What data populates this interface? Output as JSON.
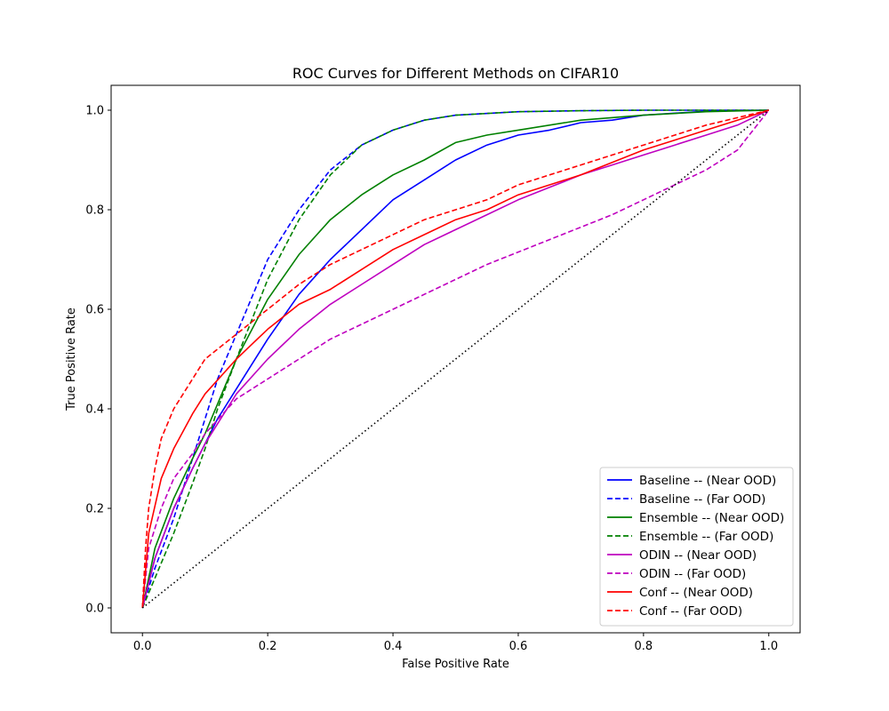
{
  "chart_data": {
    "type": "line",
    "title": "ROC Curves for Different Methods on CIFAR10",
    "xlabel": "False Positive Rate",
    "ylabel": "True Positive Rate",
    "xlim": [
      -0.05,
      1.05
    ],
    "ylim": [
      -0.05,
      1.05
    ],
    "xticks": [
      "0.0",
      "0.2",
      "0.4",
      "0.6",
      "0.8",
      "1.0"
    ],
    "yticks": [
      "0.0",
      "0.2",
      "0.4",
      "0.6",
      "0.8",
      "1.0"
    ],
    "grid": false,
    "legend_position": "lower-right",
    "series": [
      {
        "name": "Baseline -- (Near OOD)",
        "color": "#0000ff",
        "style": "solid",
        "x": [
          0,
          0.02,
          0.05,
          0.08,
          0.1,
          0.12,
          0.15,
          0.2,
          0.25,
          0.3,
          0.35,
          0.4,
          0.45,
          0.5,
          0.55,
          0.6,
          0.65,
          0.7,
          0.75,
          0.8,
          0.9,
          1.0
        ],
        "y": [
          0,
          0.1,
          0.2,
          0.28,
          0.33,
          0.38,
          0.44,
          0.54,
          0.63,
          0.7,
          0.76,
          0.82,
          0.86,
          0.9,
          0.93,
          0.95,
          0.96,
          0.975,
          0.98,
          0.99,
          0.998,
          1.0
        ]
      },
      {
        "name": "Baseline -- (Far OOD)",
        "color": "#0000ff",
        "style": "dashed",
        "x": [
          0,
          0.02,
          0.05,
          0.08,
          0.1,
          0.12,
          0.15,
          0.2,
          0.25,
          0.3,
          0.35,
          0.4,
          0.45,
          0.5,
          0.6,
          0.7,
          0.8,
          0.9,
          1.0
        ],
        "y": [
          0,
          0.08,
          0.18,
          0.3,
          0.38,
          0.46,
          0.55,
          0.7,
          0.8,
          0.88,
          0.93,
          0.96,
          0.98,
          0.99,
          0.997,
          0.999,
          1.0,
          1.0,
          1.0
        ]
      },
      {
        "name": "Ensemble -- (Near OOD)",
        "color": "#008000",
        "style": "solid",
        "x": [
          0,
          0.02,
          0.05,
          0.08,
          0.1,
          0.12,
          0.15,
          0.2,
          0.25,
          0.3,
          0.35,
          0.4,
          0.45,
          0.5,
          0.55,
          0.6,
          0.7,
          0.8,
          0.9,
          1.0
        ],
        "y": [
          0,
          0.12,
          0.22,
          0.3,
          0.35,
          0.41,
          0.5,
          0.62,
          0.71,
          0.78,
          0.83,
          0.87,
          0.9,
          0.935,
          0.95,
          0.96,
          0.98,
          0.99,
          0.997,
          1.0
        ]
      },
      {
        "name": "Ensemble -- (Far OOD)",
        "color": "#008000",
        "style": "dashed",
        "x": [
          0,
          0.02,
          0.05,
          0.08,
          0.1,
          0.12,
          0.15,
          0.2,
          0.25,
          0.3,
          0.35,
          0.4,
          0.45,
          0.5,
          0.6,
          0.7,
          0.8,
          0.9,
          1.0
        ],
        "y": [
          0,
          0.06,
          0.15,
          0.25,
          0.32,
          0.4,
          0.5,
          0.66,
          0.78,
          0.87,
          0.93,
          0.96,
          0.98,
          0.99,
          0.997,
          0.999,
          1.0,
          1.0,
          1.0
        ]
      },
      {
        "name": "ODIN -- (Near OOD)",
        "color": "#bf00bf",
        "style": "solid",
        "x": [
          0,
          0.02,
          0.05,
          0.08,
          0.1,
          0.15,
          0.2,
          0.25,
          0.3,
          0.35,
          0.4,
          0.45,
          0.5,
          0.55,
          0.6,
          0.65,
          0.7,
          0.75,
          0.8,
          0.85,
          0.9,
          0.95,
          1.0
        ],
        "y": [
          0,
          0.1,
          0.2,
          0.28,
          0.33,
          0.43,
          0.5,
          0.56,
          0.61,
          0.65,
          0.69,
          0.73,
          0.76,
          0.79,
          0.82,
          0.845,
          0.87,
          0.89,
          0.91,
          0.93,
          0.95,
          0.97,
          1.0
        ]
      },
      {
        "name": "ODIN -- (Far OOD)",
        "color": "#bf00bf",
        "style": "dashed",
        "x": [
          0,
          0.01,
          0.03,
          0.05,
          0.08,
          0.1,
          0.15,
          0.2,
          0.25,
          0.3,
          0.35,
          0.4,
          0.45,
          0.5,
          0.55,
          0.6,
          0.65,
          0.7,
          0.75,
          0.8,
          0.85,
          0.9,
          0.95,
          1.0
        ],
        "y": [
          0,
          0.12,
          0.2,
          0.26,
          0.31,
          0.35,
          0.42,
          0.46,
          0.5,
          0.54,
          0.57,
          0.6,
          0.63,
          0.66,
          0.69,
          0.715,
          0.74,
          0.765,
          0.79,
          0.82,
          0.85,
          0.88,
          0.92,
          1.0
        ]
      },
      {
        "name": "Conf -- (Near OOD)",
        "color": "#ff0000",
        "style": "solid",
        "x": [
          0,
          0.01,
          0.03,
          0.05,
          0.08,
          0.1,
          0.15,
          0.2,
          0.25,
          0.3,
          0.35,
          0.4,
          0.45,
          0.5,
          0.55,
          0.6,
          0.65,
          0.7,
          0.75,
          0.8,
          0.85,
          0.9,
          0.95,
          1.0
        ],
        "y": [
          0,
          0.15,
          0.26,
          0.32,
          0.39,
          0.43,
          0.5,
          0.56,
          0.61,
          0.64,
          0.68,
          0.72,
          0.75,
          0.78,
          0.8,
          0.83,
          0.85,
          0.87,
          0.895,
          0.92,
          0.94,
          0.96,
          0.98,
          1.0
        ]
      },
      {
        "name": "Conf -- (Far OOD)",
        "color": "#ff0000",
        "style": "dashed",
        "x": [
          0,
          0.005,
          0.01,
          0.02,
          0.03,
          0.05,
          0.08,
          0.1,
          0.15,
          0.2,
          0.25,
          0.3,
          0.35,
          0.4,
          0.45,
          0.5,
          0.55,
          0.6,
          0.65,
          0.7,
          0.75,
          0.8,
          0.85,
          0.9,
          0.95,
          1.0
        ],
        "y": [
          0,
          0.12,
          0.2,
          0.28,
          0.34,
          0.4,
          0.46,
          0.5,
          0.55,
          0.6,
          0.65,
          0.69,
          0.72,
          0.75,
          0.78,
          0.8,
          0.82,
          0.85,
          0.87,
          0.89,
          0.91,
          0.93,
          0.95,
          0.97,
          0.985,
          1.0
        ]
      },
      {
        "name": "",
        "color": "#000000",
        "style": "dotted",
        "x": [
          0,
          1
        ],
        "y": [
          0,
          1
        ]
      }
    ]
  }
}
